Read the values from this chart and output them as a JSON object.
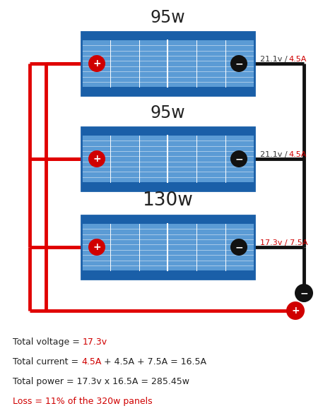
{
  "panels": [
    {
      "label": "95w",
      "watts": 95,
      "spec_black": "21.1v / ",
      "spec_red": "4.5A"
    },
    {
      "label": "95w",
      "watts": 95,
      "spec_black": "21.1v / ",
      "spec_red": "4.5A"
    },
    {
      "label": "130w",
      "watts": 130,
      "spec_black": "",
      "spec_red": "17.3v / 7.5A"
    }
  ],
  "panel_blue_light": "#5b9bd5",
  "panel_blue_dark": "#1a5fa8",
  "panel_grid_color": "#c8dff5",
  "panel_line_color": "#ffffff",
  "wire_red": "#e00000",
  "wire_black": "#111111",
  "terminal_red": "#d00000",
  "terminal_black": "#111111",
  "spec_black_color": "#333333",
  "spec_red_color": "#d00000",
  "label_fontsize": 17,
  "label_130_fontsize": 19,
  "summary_lines": [
    [
      {
        "t": "Total voltage = ",
        "c": "#222222"
      },
      {
        "t": "17.3v",
        "c": "#d00000"
      }
    ],
    [
      {
        "t": "Total current = ",
        "c": "#222222"
      },
      {
        "t": "4.5A",
        "c": "#d00000"
      },
      {
        "t": " + 4.5A + 7.5A = 16.5A",
        "c": "#222222"
      }
    ],
    [
      {
        "t": "Total power = 17.3v x 16.5A = 285.45w",
        "c": "#222222"
      }
    ],
    [
      {
        "t": "Loss = 11% of the 320w panels",
        "c": "#d00000"
      }
    ]
  ],
  "background_color": "#ffffff"
}
